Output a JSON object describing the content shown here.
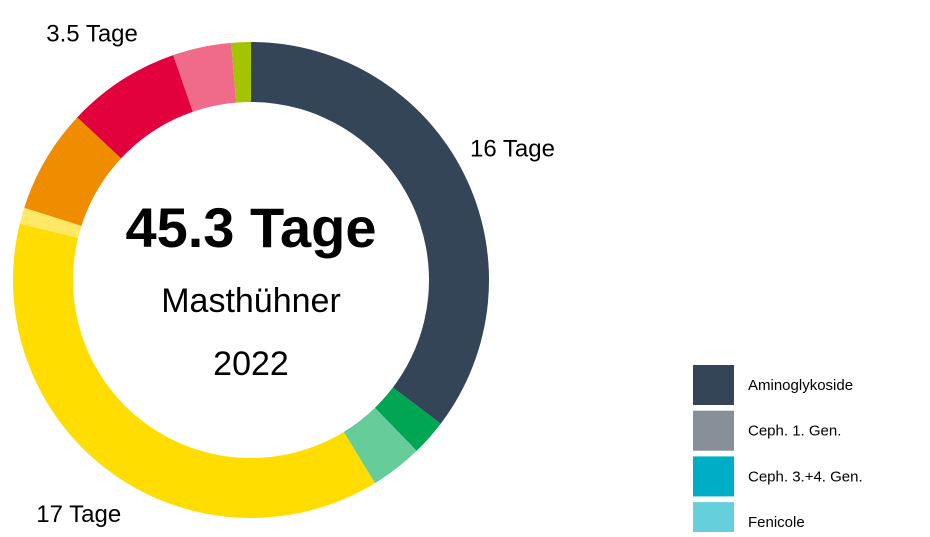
{
  "chart_data": {
    "type": "donut",
    "center_title": "45.3 Tage",
    "center_subtitle": "Masthühner",
    "center_year": "2022",
    "values": [
      16,
      1.1,
      1.6,
      17,
      0.5,
      3.2,
      3.5,
      1.8,
      0.6
    ],
    "value_labels": [
      "16 Tage",
      null,
      null,
      "17 Tage",
      null,
      null,
      "3.5 Tage",
      null,
      null
    ],
    "colors": [
      "#344557",
      "#00a651",
      "#66cc99",
      "#ffdd00",
      "#ffe866",
      "#f08c00",
      "#e2003d",
      "#f06a8a",
      "#a5c400"
    ],
    "legend": [
      {
        "name": "Aminoglykoside",
        "color": "#344557"
      },
      {
        "name": "Ceph. 1. Gen.",
        "color": "#878f98"
      },
      {
        "name": "Ceph. 3.+4. Gen.",
        "color": "#00adc6"
      },
      {
        "name": "Fenicole",
        "color": "#66cfdc"
      }
    ]
  }
}
